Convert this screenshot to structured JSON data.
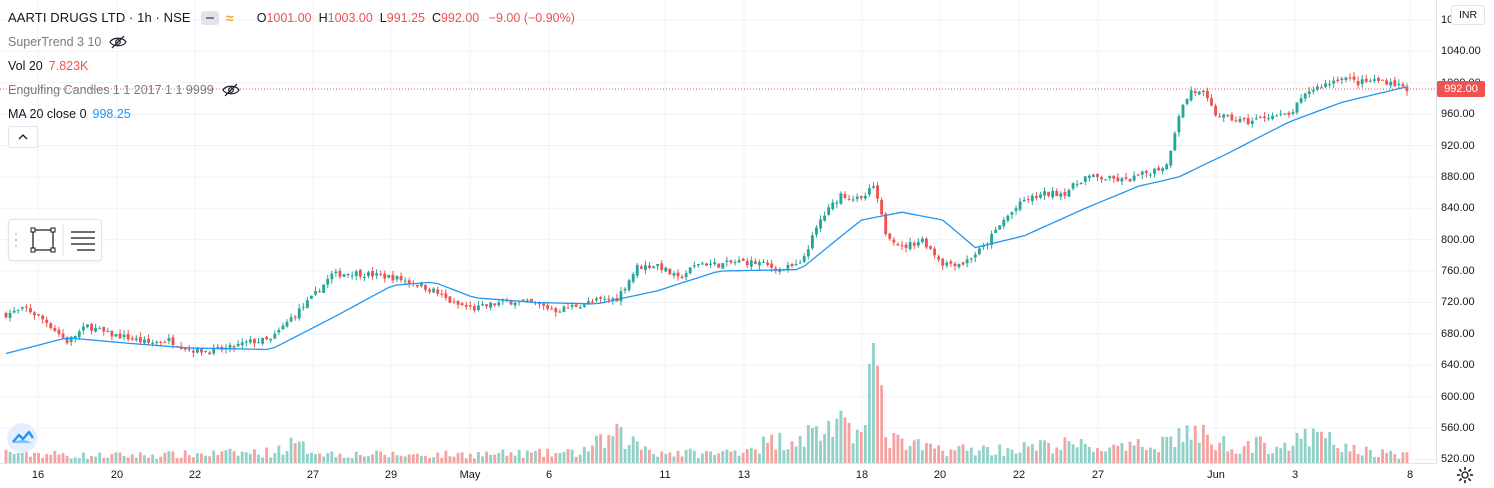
{
  "header": {
    "symbol": "AARTI DRUGS LTD · 1h · NSE",
    "ohlc": {
      "open_key": "O",
      "open": "1001.00",
      "high_key": "H",
      "high": "1003.00",
      "low_key": "L",
      "low": "991.25",
      "close_key": "C",
      "close": "992.00",
      "change": "−9.00 (−0.90%)"
    }
  },
  "indicators": [
    {
      "name": "SuperTrend 3 10",
      "value": "",
      "hidden": true
    },
    {
      "name": "Vol 20",
      "value": "7.823K",
      "hidden": false
    },
    {
      "name": "Engulfing Candles 1 1 2017 1 1 9999",
      "value": "",
      "hidden": true
    },
    {
      "name": "MA 20 close 0",
      "value": "998.25",
      "hidden": false
    }
  ],
  "price_axis": {
    "currency": "INR",
    "ticks": [
      "1080.00",
      "1040.00",
      "1000.00",
      "960.00",
      "920.00",
      "880.00",
      "840.00",
      "800.00",
      "760.00",
      "720.00",
      "680.00",
      "640.00",
      "600.00",
      "560.00",
      "520.00"
    ],
    "current_price": "992.00"
  },
  "time_axis": {
    "labels": [
      "16",
      "20",
      "22",
      "27",
      "29",
      "May",
      "6",
      "11",
      "13",
      "18",
      "20",
      "22",
      "27",
      "Jun",
      "3",
      "8"
    ]
  },
  "colors": {
    "up": "#26a69a",
    "down": "#ef5350",
    "ma": "#2196f3",
    "grid": "#f0f3fa",
    "text": "#131722"
  },
  "icons": {
    "eye_hidden": "eye-off-icon",
    "collapse": "chevron-up-icon",
    "rectangle_tool": "rectangle-icon",
    "object_tree": "object-tree-icon",
    "logo": "tradingview-logo-icon",
    "settings": "gear-icon"
  },
  "chart_data": {
    "type": "candlestick",
    "ylim": [
      500,
      1085
    ],
    "x_tick_labels": [
      "16",
      "20",
      "22",
      "27",
      "29",
      "May",
      "6",
      "11",
      "13",
      "18",
      "20",
      "22",
      "27",
      "Jun",
      "3",
      "8"
    ],
    "price_anchors": [
      [
        0,
        705
      ],
      [
        5,
        712
      ],
      [
        10,
        695
      ],
      [
        15,
        670
      ],
      [
        20,
        690
      ],
      [
        25,
        680
      ],
      [
        30,
        675
      ],
      [
        35,
        668
      ],
      [
        40,
        672
      ],
      [
        45,
        660
      ],
      [
        50,
        658
      ],
      [
        55,
        662
      ],
      [
        60,
        670
      ],
      [
        65,
        672
      ],
      [
        70,
        700
      ],
      [
        75,
        725
      ],
      [
        80,
        755
      ],
      [
        85,
        758
      ],
      [
        90,
        755
      ],
      [
        95,
        752
      ],
      [
        100,
        745
      ],
      [
        105,
        735
      ],
      [
        110,
        718
      ],
      [
        115,
        712
      ],
      [
        120,
        718
      ],
      [
        125,
        722
      ],
      [
        130,
        718
      ],
      [
        135,
        710
      ],
      [
        140,
        716
      ],
      [
        145,
        722
      ],
      [
        150,
        725
      ],
      [
        155,
        765
      ],
      [
        160,
        768
      ],
      [
        165,
        750
      ],
      [
        170,
        770
      ],
      [
        175,
        768
      ],
      [
        180,
        772
      ],
      [
        185,
        770
      ],
      [
        190,
        762
      ],
      [
        195,
        768
      ],
      [
        200,
        825
      ],
      [
        205,
        858
      ],
      [
        210,
        850
      ],
      [
        213,
        868
      ],
      [
        216,
        810
      ],
      [
        220,
        790
      ],
      [
        225,
        800
      ],
      [
        230,
        770
      ],
      [
        235,
        770
      ],
      [
        240,
        790
      ],
      [
        245,
        825
      ],
      [
        250,
        850
      ],
      [
        255,
        858
      ],
      [
        260,
        860
      ],
      [
        265,
        880
      ],
      [
        270,
        878
      ],
      [
        275,
        875
      ],
      [
        280,
        885
      ],
      [
        285,
        895
      ],
      [
        288,
        960
      ],
      [
        291,
        990
      ],
      [
        294,
        985
      ],
      [
        297,
        960
      ],
      [
        300,
        955
      ],
      [
        305,
        950
      ],
      [
        310,
        958
      ],
      [
        315,
        958
      ],
      [
        320,
        990
      ],
      [
        325,
        1000
      ],
      [
        328,
        1008
      ],
      [
        332,
        1000
      ],
      [
        336,
        1003
      ],
      [
        340,
        1001
      ],
      [
        344,
        992
      ]
    ],
    "ma_anchors": [
      [
        0,
        655
      ],
      [
        15,
        675
      ],
      [
        30,
        668
      ],
      [
        45,
        662
      ],
      [
        65,
        660
      ],
      [
        80,
        700
      ],
      [
        95,
        742
      ],
      [
        105,
        746
      ],
      [
        115,
        726
      ],
      [
        130,
        720
      ],
      [
        145,
        718
      ],
      [
        160,
        735
      ],
      [
        175,
        760
      ],
      [
        195,
        762
      ],
      [
        210,
        825
      ],
      [
        220,
        835
      ],
      [
        230,
        825
      ],
      [
        238,
        790
      ],
      [
        250,
        805
      ],
      [
        265,
        840
      ],
      [
        278,
        868
      ],
      [
        288,
        880
      ],
      [
        300,
        910
      ],
      [
        315,
        950
      ],
      [
        328,
        975
      ],
      [
        344,
        995
      ]
    ],
    "volume_anchors": [
      [
        0,
        1.2
      ],
      [
        10,
        1.0
      ],
      [
        20,
        0.8
      ],
      [
        40,
        0.9
      ],
      [
        65,
        1.2
      ],
      [
        70,
        2.0
      ],
      [
        80,
        1.0
      ],
      [
        100,
        0.9
      ],
      [
        140,
        1.1
      ],
      [
        150,
        3.0
      ],
      [
        160,
        1.2
      ],
      [
        175,
        1.0
      ],
      [
        200,
        3.5
      ],
      [
        204,
        4.5
      ],
      [
        208,
        2.5
      ],
      [
        213,
        12
      ],
      [
        216,
        3.0
      ],
      [
        220,
        2.0
      ],
      [
        230,
        1.5
      ],
      [
        245,
        1.5
      ],
      [
        260,
        2.0
      ],
      [
        275,
        1.5
      ],
      [
        285,
        2.5
      ],
      [
        290,
        3.5
      ],
      [
        300,
        2.0
      ],
      [
        315,
        2.0
      ],
      [
        322,
        3.0
      ],
      [
        330,
        1.5
      ],
      [
        344,
        0.8
      ]
    ]
  }
}
